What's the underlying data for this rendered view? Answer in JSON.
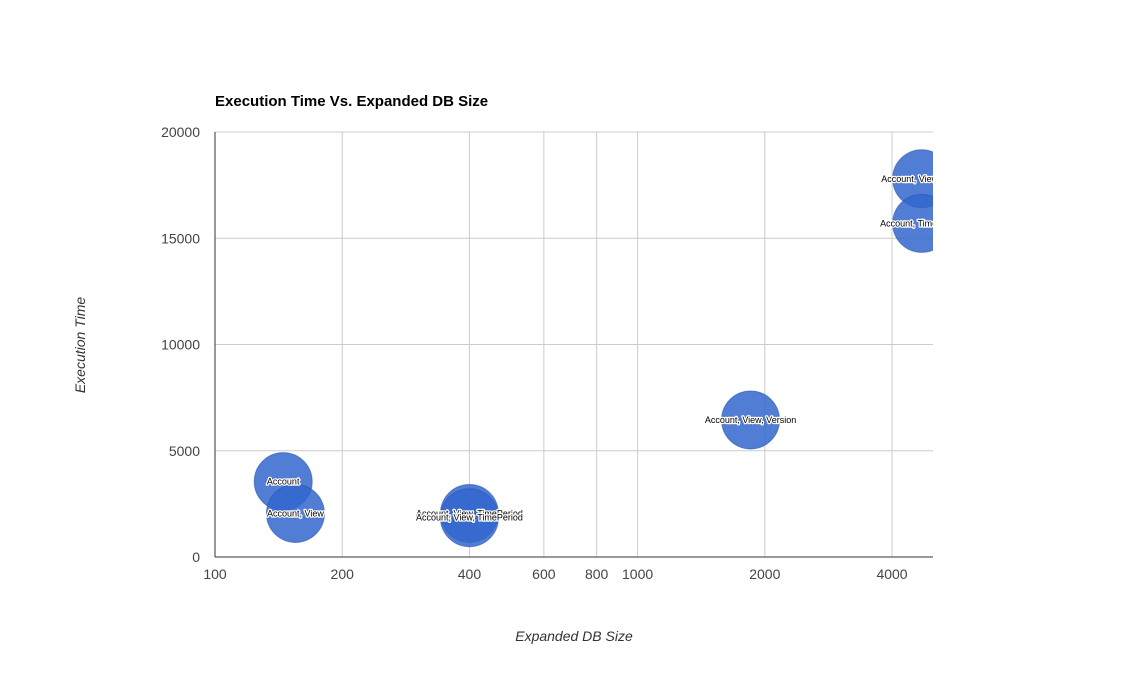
{
  "chart_data": {
    "type": "scatter",
    "title": "Execution Time Vs. Expanded DB Size",
    "xlabel": "Expanded DB Size",
    "ylabel": "Execution Time",
    "x_scale": "log",
    "xlim": [
      100,
      5000
    ],
    "ylim": [
      0,
      20000
    ],
    "x_ticks": [
      100,
      200,
      400,
      600,
      800,
      1000,
      2000,
      4000
    ],
    "y_ticks": [
      0,
      5000,
      10000,
      15000,
      20000
    ],
    "grid": true,
    "legend": "none",
    "bubble_color": "#3366cc",
    "points": [
      {
        "label": "Account",
        "x": 145,
        "y": 3550
      },
      {
        "label": "Account, View",
        "x": 155,
        "y": 2050
      },
      {
        "label": "Account, View, TimePeriod",
        "x": 400,
        "y": 2050
      },
      {
        "label": "Account, View, TimePeriod",
        "x": 400,
        "y": 1850
      },
      {
        "label": "Account, View, Version",
        "x": 1850,
        "y": 6450
      },
      {
        "label": "Account, View, Time",
        "x": 4700,
        "y": 17800
      },
      {
        "label": "Account, TimePeriod",
        "x": 4700,
        "y": 15700
      }
    ]
  }
}
